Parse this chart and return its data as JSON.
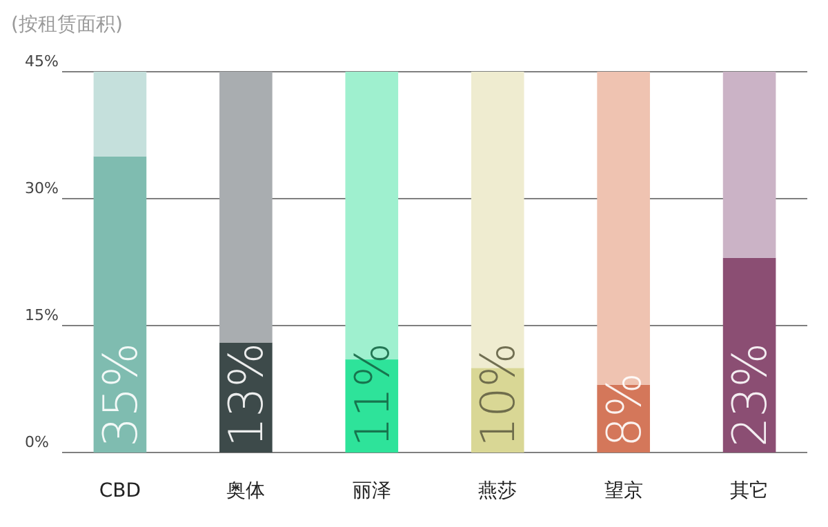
{
  "chart_data": {
    "type": "bar",
    "title": "(按租赁面积)",
    "categories": [
      "CBD",
      "奥体",
      "丽泽",
      "燕莎",
      "望京",
      "其它"
    ],
    "stacked": true,
    "series": [
      {
        "colors": [
          "#7fbcb0",
          "#3d4a4a",
          "#2ee39a",
          "#d9d795",
          "#d4775a",
          "#8b4e73"
        ],
        "values": [
          35,
          13,
          11,
          10,
          8,
          23
        ],
        "value_labels": [
          "35%",
          "13%",
          "11%",
          "10%",
          "8%",
          "23%"
        ]
      },
      {
        "colors": [
          "#c5e0dc",
          "#a9adb0",
          "#9ff0cf",
          "#efecd0",
          "#efc3b1",
          "#cbb3c6"
        ],
        "values": [
          10,
          32,
          34,
          35,
          37,
          22
        ]
      }
    ],
    "ylim": [
      0,
      45
    ],
    "yticks": [
      {
        "value": 0,
        "label": "0%"
      },
      {
        "value": 15,
        "label": "15%"
      },
      {
        "value": 30,
        "label": "30%"
      },
      {
        "value": 45,
        "label": "45%"
      }
    ],
    "grid": "y"
  }
}
